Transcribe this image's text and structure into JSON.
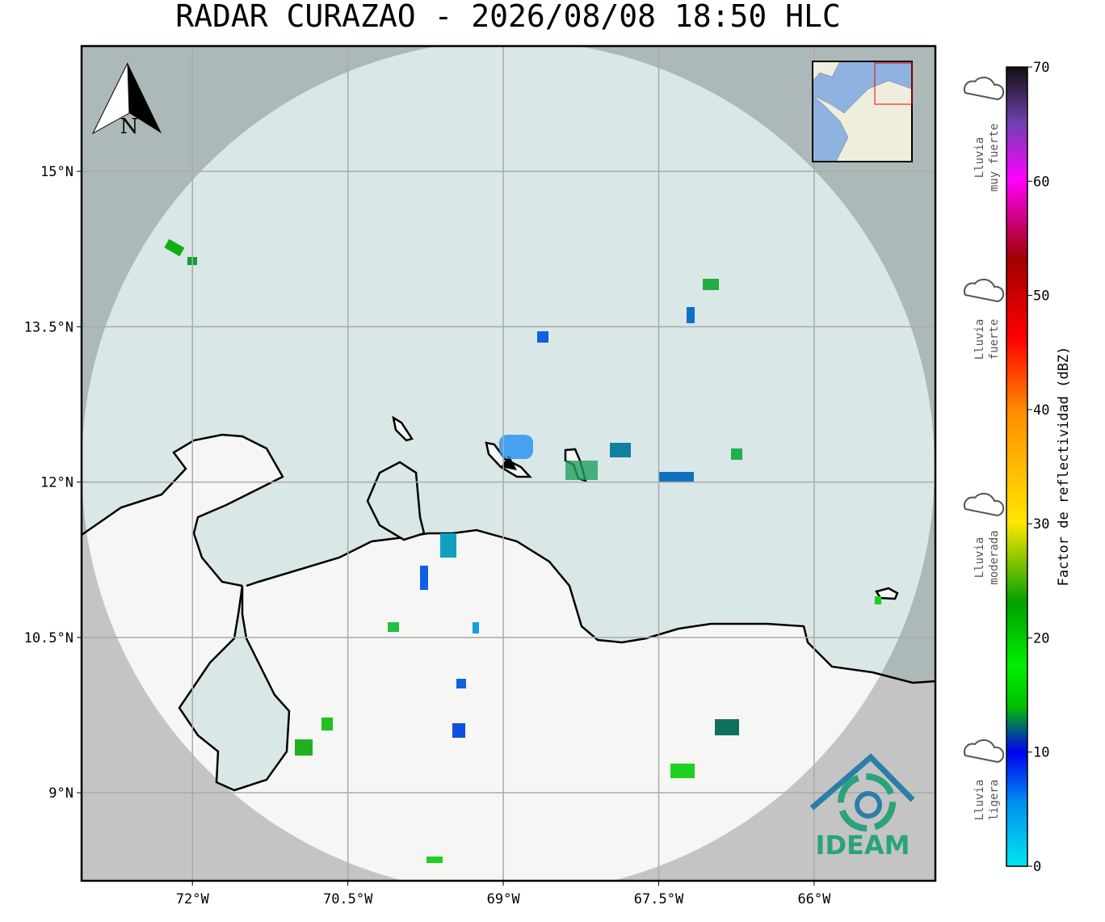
{
  "map": {
    "title": "RADAR CURAZAO - 2026/08/08 18:50 HLC",
    "xlim": [
      -73.07,
      -64.83
    ],
    "ylim": [
      8.15,
      16.21
    ],
    "xticks": [
      {
        "value": -72,
        "label": "72°W"
      },
      {
        "value": -70.5,
        "label": "70.5°W"
      },
      {
        "value": -69,
        "label": "69°W"
      },
      {
        "value": -67.5,
        "label": "67.5°W"
      },
      {
        "value": -66,
        "label": "66°W"
      }
    ],
    "yticks": [
      {
        "value": 9,
        "label": "9°N"
      },
      {
        "value": 10.5,
        "label": "10.5°N"
      },
      {
        "value": 12,
        "label": "12°N"
      },
      {
        "value": 13.5,
        "label": "13.5°N"
      },
      {
        "value": 15,
        "label": "15°N"
      }
    ],
    "grid": true,
    "north_label": "N",
    "logo_text": "IDEAM"
  },
  "colorbar": {
    "label": "Factor de reflectividad (dBZ)",
    "lim": [
      0,
      70
    ],
    "ticks": [
      0,
      10,
      20,
      30,
      40,
      50,
      60,
      70
    ]
  },
  "rain_legend": [
    {
      "lines": [
        "Lluvia",
        "muy fuerte"
      ]
    },
    {
      "lines": [
        "Lluvia",
        "fuerte"
      ]
    },
    {
      "lines": [
        "Lluvia",
        "moderada"
      ]
    },
    {
      "lines": [
        "Lluvia",
        "ligera"
      ]
    }
  ]
}
